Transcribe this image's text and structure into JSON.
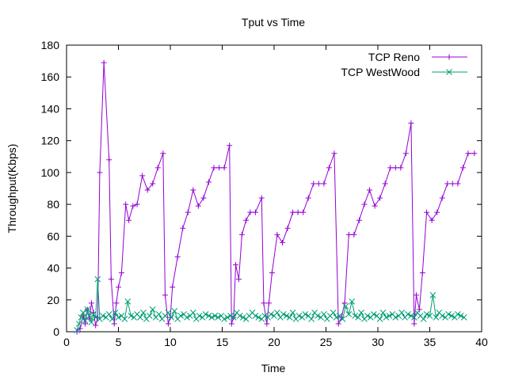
{
  "chart_data": {
    "type": "line",
    "title": "Tput vs Time",
    "xlabel": "Time",
    "ylabel": "Throughput(Kbps)",
    "xlim": [
      0,
      40
    ],
    "ylim": [
      0,
      180
    ],
    "x_ticks": [
      0,
      5,
      10,
      15,
      20,
      25,
      30,
      35,
      40
    ],
    "y_ticks": [
      0,
      20,
      40,
      60,
      80,
      100,
      120,
      140,
      160,
      180
    ],
    "grid": false,
    "legend_position": "top-right",
    "series": [
      {
        "name": "TCP Reno",
        "color": "#9400d3",
        "marker": "plus",
        "points": [
          [
            1.0,
            0
          ],
          [
            1.3,
            2
          ],
          [
            1.6,
            10
          ],
          [
            1.8,
            5
          ],
          [
            2.0,
            14
          ],
          [
            2.2,
            8
          ],
          [
            2.4,
            18
          ],
          [
            2.6,
            12
          ],
          [
            2.8,
            4
          ],
          [
            3.0,
            9
          ],
          [
            3.2,
            100
          ],
          [
            3.6,
            169
          ],
          [
            4.1,
            108
          ],
          [
            4.3,
            33
          ],
          [
            4.6,
            5
          ],
          [
            4.8,
            18
          ],
          [
            5.0,
            28
          ],
          [
            5.3,
            37
          ],
          [
            5.7,
            80
          ],
          [
            6.0,
            70
          ],
          [
            6.4,
            79
          ],
          [
            6.8,
            80
          ],
          [
            7.3,
            98
          ],
          [
            7.8,
            89
          ],
          [
            8.3,
            93
          ],
          [
            8.8,
            103
          ],
          [
            9.3,
            112
          ],
          [
            9.5,
            23
          ],
          [
            9.8,
            5
          ],
          [
            10.0,
            9
          ],
          [
            10.2,
            28
          ],
          [
            10.7,
            47
          ],
          [
            11.2,
            65
          ],
          [
            11.7,
            75
          ],
          [
            12.2,
            89
          ],
          [
            12.7,
            79
          ],
          [
            13.2,
            84
          ],
          [
            13.7,
            94
          ],
          [
            14.2,
            103
          ],
          [
            14.7,
            103
          ],
          [
            15.2,
            103
          ],
          [
            15.7,
            117
          ],
          [
            15.9,
            5
          ],
          [
            16.1,
            9
          ],
          [
            16.3,
            42
          ],
          [
            16.6,
            33
          ],
          [
            16.9,
            61
          ],
          [
            17.3,
            70
          ],
          [
            17.7,
            75
          ],
          [
            18.2,
            75
          ],
          [
            18.8,
            84
          ],
          [
            19.0,
            18
          ],
          [
            19.3,
            5
          ],
          [
            19.5,
            18
          ],
          [
            19.8,
            37
          ],
          [
            20.3,
            61
          ],
          [
            20.8,
            56
          ],
          [
            21.3,
            65
          ],
          [
            21.8,
            75
          ],
          [
            22.3,
            75
          ],
          [
            22.8,
            75
          ],
          [
            23.3,
            84
          ],
          [
            23.8,
            93
          ],
          [
            24.3,
            93
          ],
          [
            24.8,
            93
          ],
          [
            25.3,
            103
          ],
          [
            25.8,
            112
          ],
          [
            26.2,
            5
          ],
          [
            26.5,
            9
          ],
          [
            26.8,
            18
          ],
          [
            27.2,
            61
          ],
          [
            27.7,
            61
          ],
          [
            28.2,
            70
          ],
          [
            28.7,
            80
          ],
          [
            29.2,
            89
          ],
          [
            29.7,
            79
          ],
          [
            30.2,
            84
          ],
          [
            30.7,
            93
          ],
          [
            31.2,
            103
          ],
          [
            31.7,
            103
          ],
          [
            32.2,
            103
          ],
          [
            32.7,
            112
          ],
          [
            33.2,
            131
          ],
          [
            33.5,
            5
          ],
          [
            33.7,
            23
          ],
          [
            34.0,
            14
          ],
          [
            34.3,
            37
          ],
          [
            34.7,
            75
          ],
          [
            35.2,
            70
          ],
          [
            35.7,
            75
          ],
          [
            36.2,
            84
          ],
          [
            36.7,
            93
          ],
          [
            37.2,
            93
          ],
          [
            37.7,
            93
          ],
          [
            38.2,
            103
          ],
          [
            38.7,
            112
          ],
          [
            39.3,
            112
          ]
        ]
      },
      {
        "name": "TCP WestWood",
        "color": "#009e73",
        "marker": "cross",
        "points": [
          [
            1.0,
            1
          ],
          [
            1.2,
            5
          ],
          [
            1.4,
            9
          ],
          [
            1.6,
            12
          ],
          [
            1.8,
            7
          ],
          [
            2.0,
            14
          ],
          [
            2.2,
            10
          ],
          [
            2.4,
            6
          ],
          [
            2.6,
            11
          ],
          [
            2.8,
            9
          ],
          [
            3.0,
            33
          ],
          [
            3.2,
            8
          ],
          [
            3.5,
            10
          ],
          [
            3.8,
            9
          ],
          [
            4.1,
            11
          ],
          [
            4.4,
            8
          ],
          [
            4.7,
            12
          ],
          [
            5.0,
            9
          ],
          [
            5.3,
            10
          ],
          [
            5.6,
            8
          ],
          [
            5.9,
            19
          ],
          [
            6.2,
            10
          ],
          [
            6.5,
            9
          ],
          [
            6.8,
            11
          ],
          [
            7.1,
            9
          ],
          [
            7.4,
            12
          ],
          [
            7.7,
            8
          ],
          [
            8.0,
            10
          ],
          [
            8.3,
            14
          ],
          [
            8.6,
            9
          ],
          [
            8.9,
            11
          ],
          [
            9.2,
            8
          ],
          [
            9.5,
            10
          ],
          [
            9.8,
            12
          ],
          [
            10.1,
            9
          ],
          [
            10.4,
            13
          ],
          [
            10.7,
            8
          ],
          [
            11.0,
            10
          ],
          [
            11.3,
            11
          ],
          [
            11.6,
            9
          ],
          [
            11.9,
            10
          ],
          [
            12.2,
            12
          ],
          [
            12.5,
            8
          ],
          [
            12.8,
            10
          ],
          [
            13.1,
            9
          ],
          [
            13.4,
            11
          ],
          [
            13.7,
            10
          ],
          [
            14.0,
            9
          ],
          [
            14.3,
            10
          ],
          [
            14.6,
            9
          ],
          [
            14.9,
            10
          ],
          [
            15.2,
            8
          ],
          [
            15.5,
            9
          ],
          [
            15.8,
            10
          ],
          [
            16.1,
            9
          ],
          [
            16.4,
            12
          ],
          [
            16.7,
            10
          ],
          [
            17.0,
            9
          ],
          [
            17.3,
            8
          ],
          [
            17.6,
            10
          ],
          [
            17.9,
            12
          ],
          [
            18.2,
            10
          ],
          [
            18.5,
            9
          ],
          [
            18.8,
            8
          ],
          [
            19.1,
            10
          ],
          [
            19.4,
            9
          ],
          [
            19.7,
            11
          ],
          [
            20.0,
            10
          ],
          [
            20.3,
            12
          ],
          [
            20.6,
            9
          ],
          [
            20.9,
            11
          ],
          [
            21.2,
            10
          ],
          [
            21.5,
            9
          ],
          [
            21.8,
            12
          ],
          [
            22.1,
            8
          ],
          [
            22.4,
            10
          ],
          [
            22.7,
            9
          ],
          [
            23.0,
            11
          ],
          [
            23.3,
            10
          ],
          [
            23.6,
            8
          ],
          [
            23.9,
            12
          ],
          [
            24.2,
            10
          ],
          [
            24.5,
            9
          ],
          [
            24.8,
            11
          ],
          [
            25.1,
            8
          ],
          [
            25.4,
            10
          ],
          [
            25.7,
            12
          ],
          [
            26.0,
            9
          ],
          [
            26.3,
            10
          ],
          [
            26.6,
            8
          ],
          [
            26.9,
            16
          ],
          [
            27.2,
            11
          ],
          [
            27.5,
            19
          ],
          [
            27.8,
            10
          ],
          [
            28.1,
            9
          ],
          [
            28.4,
            12
          ],
          [
            28.7,
            8
          ],
          [
            29.0,
            10
          ],
          [
            29.3,
            9
          ],
          [
            29.6,
            11
          ],
          [
            29.9,
            10
          ],
          [
            30.2,
            8
          ],
          [
            30.5,
            12
          ],
          [
            30.8,
            9
          ],
          [
            31.1,
            10
          ],
          [
            31.4,
            11
          ],
          [
            31.7,
            9
          ],
          [
            32.0,
            10
          ],
          [
            32.3,
            12
          ],
          [
            32.6,
            9
          ],
          [
            32.9,
            11
          ],
          [
            33.2,
            10
          ],
          [
            33.5,
            9
          ],
          [
            33.8,
            12
          ],
          [
            34.1,
            10
          ],
          [
            34.4,
            8
          ],
          [
            34.7,
            11
          ],
          [
            35.0,
            10
          ],
          [
            35.3,
            23
          ],
          [
            35.6,
            9
          ],
          [
            35.9,
            12
          ],
          [
            36.2,
            10
          ],
          [
            36.5,
            9
          ],
          [
            36.8,
            11
          ],
          [
            37.1,
            10
          ],
          [
            37.4,
            9
          ],
          [
            37.7,
            11
          ],
          [
            38.0,
            10
          ],
          [
            38.3,
            9
          ]
        ]
      }
    ]
  }
}
